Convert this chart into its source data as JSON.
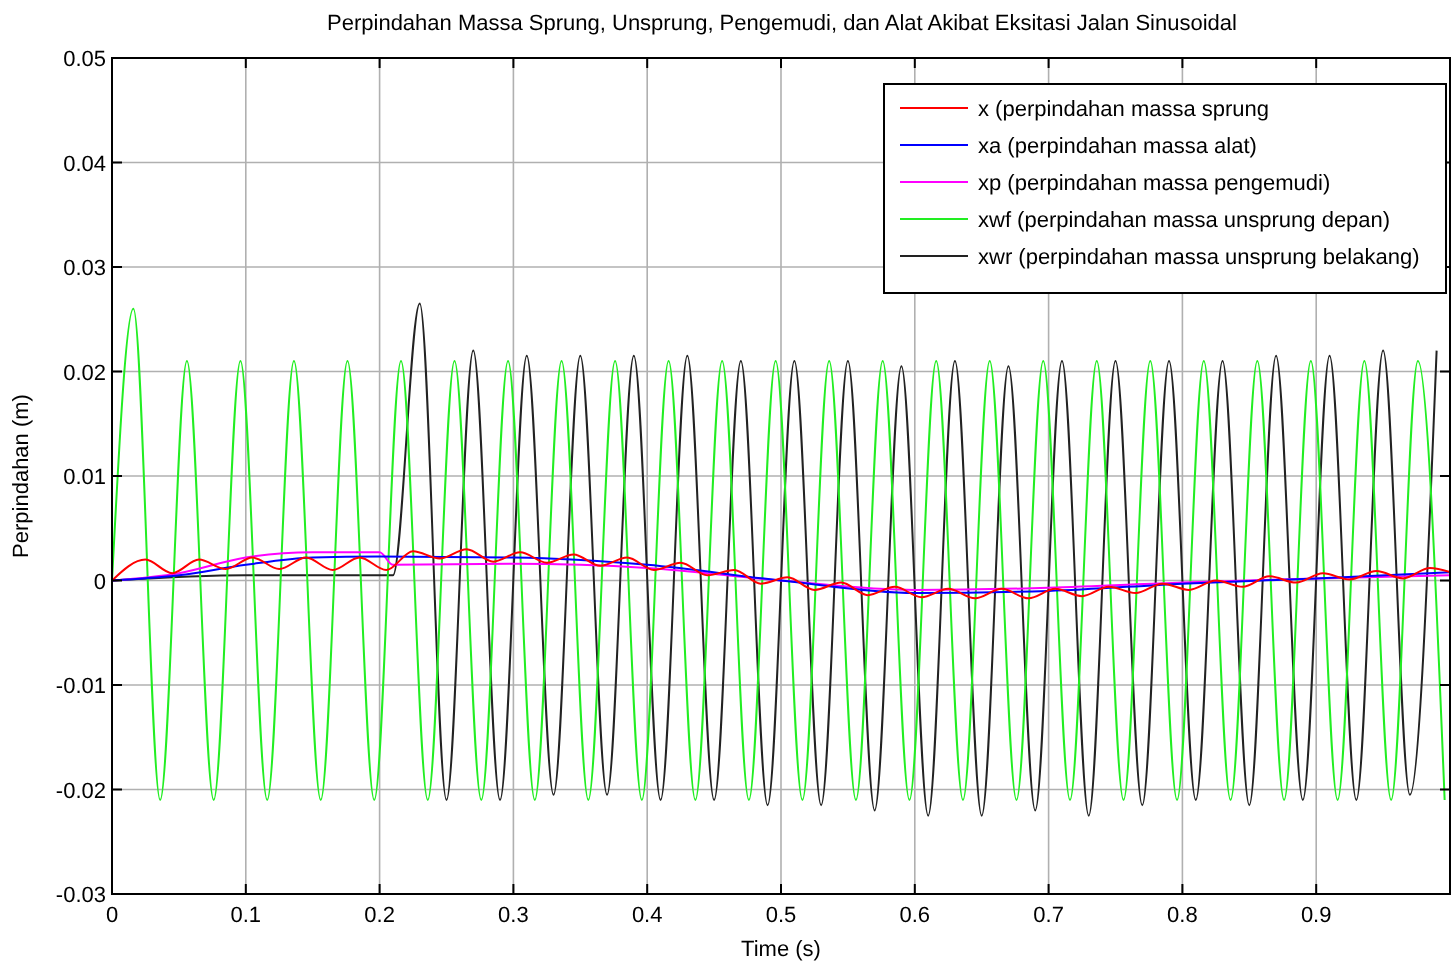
{
  "chart_data": {
    "type": "line",
    "title": "Perpindahan Massa Sprung, Unsprung, Pengemudi, dan Alat Akibat Eksitasi Jalan Sinusoidal",
    "xlabel": "Time (s)",
    "ylabel": "Perpindahan (m)",
    "xlim": [
      0,
      1
    ],
    "ylim": [
      -0.03,
      0.05
    ],
    "xticks": [
      0,
      0.1,
      0.2,
      0.3,
      0.4,
      0.5,
      0.6,
      0.7,
      0.8,
      0.9
    ],
    "yticks": [
      -0.03,
      -0.02,
      -0.01,
      0,
      0.01,
      0.02,
      0.03,
      0.04,
      0.05
    ],
    "grid": true,
    "legend": "top right",
    "line_style": "solid",
    "marker": "none",
    "series": [
      {
        "name": "x (perpindahan massa sprung",
        "color": "#ff0000",
        "x": [
          0,
          0.025,
          0.045,
          0.065,
          0.085,
          0.105,
          0.125,
          0.145,
          0.165,
          0.185,
          0.205,
          0.225,
          0.245,
          0.265,
          0.285,
          0.305,
          0.325,
          0.345,
          0.365,
          0.385,
          0.405,
          0.425,
          0.445,
          0.465,
          0.485,
          0.505,
          0.525,
          0.545,
          0.565,
          0.585,
          0.605,
          0.625,
          0.645,
          0.665,
          0.685,
          0.705,
          0.725,
          0.745,
          0.765,
          0.785,
          0.805,
          0.825,
          0.845,
          0.865,
          0.885,
          0.905,
          0.925,
          0.945,
          0.965,
          0.985,
          1.0
        ],
        "values": [
          0,
          0.002,
          0.0007,
          0.002,
          0.0011,
          0.0022,
          0.0011,
          0.0022,
          0.001,
          0.0022,
          0.001,
          0.0028,
          0.0021,
          0.003,
          0.0018,
          0.0027,
          0.0017,
          0.0025,
          0.0014,
          0.0022,
          0.001,
          0.0017,
          0.0005,
          0.001,
          -0.0003,
          0.0003,
          -0.0009,
          -0.0002,
          -0.0014,
          -0.0006,
          -0.0016,
          -0.0008,
          -0.0017,
          -0.0008,
          -0.0017,
          -0.0008,
          -0.0015,
          -0.0006,
          -0.0012,
          -0.0003,
          -0.0009,
          0,
          -0.0006,
          0.0004,
          -0.0002,
          0.0007,
          0.0001,
          0.0009,
          0.0002,
          0.0012,
          0.0008
        ]
      },
      {
        "name": "xa (perpindahan massa alat)",
        "color": "#0000ff",
        "x": [
          0,
          0.05,
          0.1,
          0.15,
          0.2,
          0.3,
          0.4,
          0.5,
          0.6,
          0.7,
          0.8,
          0.9,
          1.0
        ],
        "values": [
          0,
          0.0005,
          0.0015,
          0.0022,
          0.0023,
          0.0022,
          0.0015,
          0,
          -0.0012,
          -0.001,
          -0.0003,
          0.0002,
          0.0008
        ]
      },
      {
        "name": "xp (perpindahan massa pengemudi)",
        "color": "#ff00ff",
        "x": [
          0,
          0.05,
          0.1,
          0.15,
          0.2,
          0.21,
          0.3,
          0.4,
          0.5,
          0.6,
          0.7,
          0.8,
          0.9,
          1.0
        ],
        "values": [
          0,
          0.0007,
          0.0022,
          0.0027,
          0.0027,
          0.0015,
          0.0016,
          0.0012,
          0,
          -0.0009,
          -0.0007,
          -0.0002,
          0.0002,
          0.0005
        ]
      },
      {
        "name": "xwf (perpindahan massa unsprung depan)",
        "color": "#22ee22",
        "x": [
          0,
          0.016,
          0.036,
          0.056,
          0.076,
          0.096,
          0.116,
          0.136,
          0.156,
          0.176,
          0.196,
          0.216,
          0.236,
          0.256,
          0.276,
          0.296,
          0.316,
          0.336,
          0.356,
          0.376,
          0.396,
          0.416,
          0.436,
          0.456,
          0.476,
          0.496,
          0.516,
          0.536,
          0.556,
          0.576,
          0.596,
          0.616,
          0.636,
          0.656,
          0.676,
          0.696,
          0.716,
          0.736,
          0.756,
          0.776,
          0.796,
          0.816,
          0.836,
          0.856,
          0.876,
          0.896,
          0.916,
          0.936,
          0.956,
          0.976,
          0.996
        ],
        "values": [
          0,
          0.026,
          -0.021,
          0.021,
          -0.021,
          0.021,
          -0.021,
          0.021,
          -0.021,
          0.021,
          -0.021,
          0.021,
          -0.021,
          0.021,
          -0.021,
          0.021,
          -0.021,
          0.021,
          -0.021,
          0.021,
          -0.021,
          0.021,
          -0.021,
          0.021,
          -0.021,
          0.021,
          -0.021,
          0.021,
          -0.021,
          0.021,
          -0.021,
          0.021,
          -0.021,
          0.021,
          -0.021,
          0.021,
          -0.021,
          0.021,
          -0.021,
          0.021,
          -0.021,
          0.021,
          -0.021,
          0.021,
          -0.021,
          0.021,
          -0.021,
          0.021,
          -0.021,
          0.021,
          -0.021
        ]
      },
      {
        "name": "xwr (perpindahan massa unsprung belakang)",
        "color": "#222222",
        "x": [
          0,
          0.1,
          0.21,
          0.23,
          0.25,
          0.27,
          0.29,
          0.31,
          0.33,
          0.35,
          0.37,
          0.39,
          0.41,
          0.43,
          0.45,
          0.47,
          0.49,
          0.51,
          0.53,
          0.55,
          0.57,
          0.59,
          0.61,
          0.63,
          0.65,
          0.67,
          0.69,
          0.71,
          0.73,
          0.75,
          0.77,
          0.79,
          0.81,
          0.83,
          0.85,
          0.87,
          0.89,
          0.91,
          0.93,
          0.95,
          0.97,
          0.99
        ],
        "values": [
          0,
          0.0005,
          0.0005,
          0.0265,
          -0.021,
          0.022,
          -0.021,
          0.0215,
          -0.0205,
          0.0215,
          -0.0205,
          0.0215,
          -0.021,
          0.0215,
          -0.021,
          0.021,
          -0.0215,
          0.021,
          -0.0215,
          0.021,
          -0.022,
          0.0205,
          -0.0225,
          0.021,
          -0.0225,
          0.0205,
          -0.022,
          0.021,
          -0.0225,
          0.021,
          -0.0215,
          0.021,
          -0.021,
          0.021,
          -0.0215,
          0.0215,
          -0.021,
          0.0215,
          -0.021,
          0.022,
          -0.0205,
          0.022
        ]
      }
    ]
  }
}
